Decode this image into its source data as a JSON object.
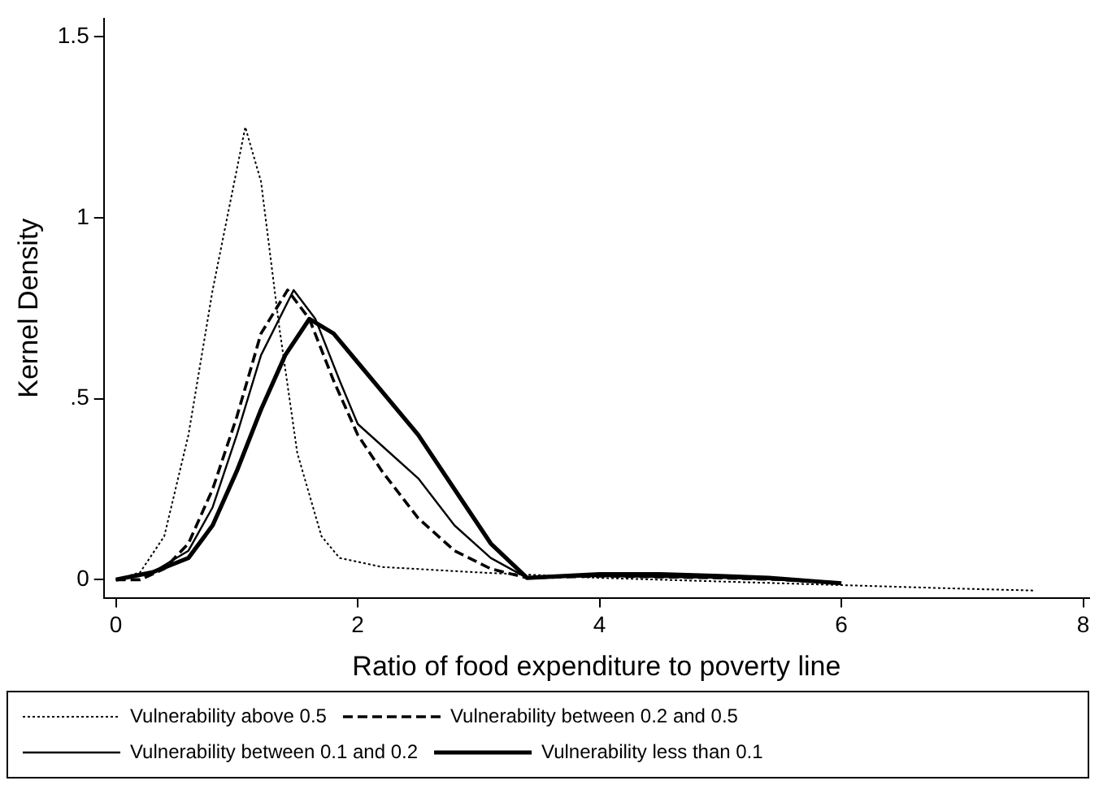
{
  "chart_data": {
    "type": "line",
    "xlabel": "Ratio of food expenditure to poverty line",
    "ylabel": "Kernel Density",
    "xlim": [
      -0.1,
      8.05
    ],
    "xticks": [
      0,
      2,
      4,
      6,
      8
    ],
    "ylim": [
      -0.05,
      1.55
    ],
    "yticks": [
      0,
      {
        "value": 0.5,
        "label": ".5"
      },
      1,
      1.5
    ],
    "grid": false,
    "legend": "bottom",
    "marker": "none",
    "series": [
      {
        "name": "Vulnerability above 0.5",
        "color": "#000000",
        "line_style": "dotted",
        "x": [
          0,
          0.2,
          0.4,
          0.6,
          0.8,
          0.95,
          1.07,
          1.2,
          1.35,
          1.5,
          1.7,
          1.85,
          2.2,
          3,
          4,
          5,
          6,
          7,
          7.6
        ],
        "values": [
          0,
          0.02,
          0.12,
          0.4,
          0.8,
          1.05,
          1.25,
          1.1,
          0.7,
          0.35,
          0.12,
          0.06,
          0.035,
          0.02,
          0.005,
          -0.005,
          -0.015,
          -0.025,
          -0.03
        ]
      },
      {
        "name": "Vulnerability between 0.2 and 0.5",
        "color": "#000000",
        "line_style": "dashed",
        "x": [
          0,
          0.2,
          0.4,
          0.6,
          0.8,
          1.0,
          1.2,
          1.42,
          1.6,
          1.8,
          2.0,
          2.2,
          2.5,
          2.8,
          3.1,
          3.4,
          4,
          5,
          5.5,
          6
        ],
        "values": [
          0,
          0,
          0.03,
          0.1,
          0.25,
          0.45,
          0.68,
          0.8,
          0.72,
          0.55,
          0.4,
          0.3,
          0.17,
          0.08,
          0.03,
          0.005,
          0.01,
          0.005,
          0,
          -0.01
        ]
      },
      {
        "name": "Vulnerability between 0.1 and 0.2",
        "color": "#000000",
        "line_style": "solid",
        "x": [
          0,
          0.3,
          0.6,
          0.8,
          1.0,
          1.2,
          1.47,
          1.65,
          1.85,
          2.0,
          2.2,
          2.5,
          2.8,
          3.1,
          3.4,
          4,
          5,
          5.5,
          6
        ],
        "values": [
          0,
          0.02,
          0.08,
          0.2,
          0.4,
          0.62,
          0.8,
          0.72,
          0.55,
          0.43,
          0.37,
          0.28,
          0.15,
          0.06,
          0.005,
          0.01,
          0.005,
          0,
          -0.01
        ]
      },
      {
        "name": "Vulnerability less than 0.1",
        "color": "#000000",
        "line_style": "solid",
        "x": [
          0,
          0.3,
          0.6,
          0.8,
          1.0,
          1.2,
          1.4,
          1.6,
          1.8,
          2.0,
          2.2,
          2.5,
          2.8,
          3.1,
          3.4,
          4,
          4.5,
          5,
          5.4,
          6
        ],
        "values": [
          0,
          0.02,
          0.06,
          0.15,
          0.3,
          0.47,
          0.62,
          0.72,
          0.68,
          0.6,
          0.52,
          0.4,
          0.25,
          0.1,
          0.005,
          0.015,
          0.015,
          0.01,
          0.005,
          -0.01
        ]
      }
    ]
  }
}
